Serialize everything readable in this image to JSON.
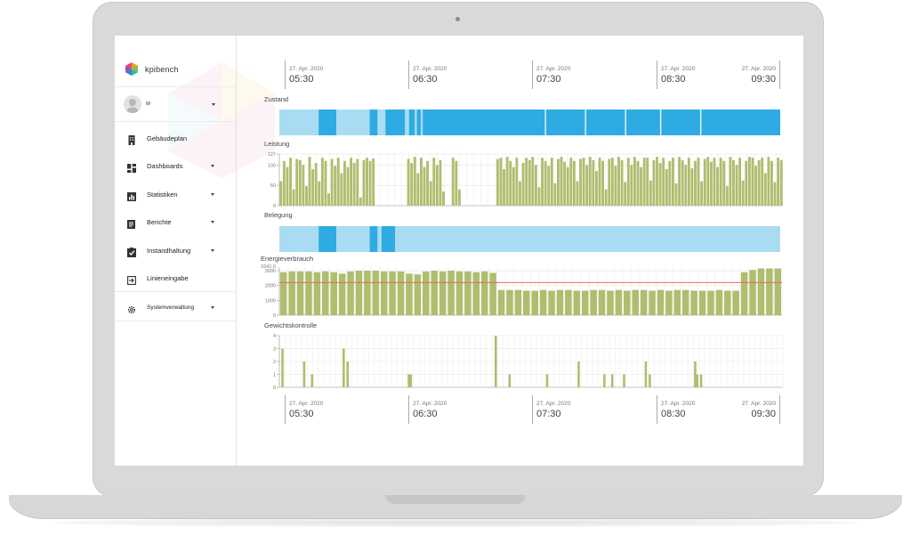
{
  "brand": {
    "name": "kpibench"
  },
  "user": {
    "name": "w"
  },
  "nav": [
    {
      "label": "Gebäudeplan",
      "icon": "building-icon",
      "caret": false
    },
    {
      "label": "Dashboards",
      "icon": "dashboard-icon",
      "caret": true
    },
    {
      "label": "Statistiken",
      "icon": "bar-chart-icon",
      "caret": true
    },
    {
      "label": "Berichte",
      "icon": "document-icon",
      "caret": true
    },
    {
      "label": "Instandhaltung",
      "icon": "clipboard-check-icon",
      "caret": true
    },
    {
      "label": "Linieneingabe",
      "icon": "input-arrow-icon",
      "caret": false
    },
    {
      "label": "Systemverwaltung",
      "icon": "gear-icon",
      "caret": true
    }
  ],
  "time_axis": {
    "ticks": [
      {
        "date": "27. Apr. 2020",
        "time": "05:30"
      },
      {
        "date": "27. Apr. 2020",
        "time": "06:30"
      },
      {
        "date": "27. Apr. 2020",
        "time": "07:30"
      },
      {
        "date": "27. Apr. 2020",
        "time": "08:30"
      },
      {
        "date": "27. Apr. 2020",
        "time": "09:30"
      }
    ]
  },
  "colors": {
    "light_blue": "#a9dcf3",
    "blue": "#2eabe2",
    "green": "#afbd6f",
    "red": "#e86a5e"
  },
  "chart_data": [
    {
      "type": "timeline",
      "title": "Zustand",
      "segments": [
        {
          "start": "05:20",
          "end": "05:40",
          "state": "light"
        },
        {
          "start": "05:40",
          "end": "05:49",
          "state": "dark"
        },
        {
          "start": "05:49",
          "end": "06:06",
          "state": "light"
        },
        {
          "start": "06:06",
          "end": "06:10",
          "state": "dark"
        },
        {
          "start": "06:10",
          "end": "06:14",
          "state": "light"
        },
        {
          "start": "06:14",
          "end": "06:24",
          "state": "dark"
        },
        {
          "start": "06:24",
          "end": "06:26",
          "state": "light"
        },
        {
          "start": "06:26",
          "end": "06:29",
          "state": "dark"
        },
        {
          "start": "06:29",
          "end": "06:30",
          "state": "light"
        },
        {
          "start": "06:30",
          "end": "06:32",
          "state": "dark"
        },
        {
          "start": "06:32",
          "end": "06:33",
          "state": "light"
        },
        {
          "start": "06:33",
          "end": "09:35",
          "state": "dark"
        }
      ]
    },
    {
      "type": "bar",
      "title": "Leistung",
      "yticks": [
        0,
        50,
        100,
        127
      ],
      "ylim": [
        0,
        127
      ],
      "values": [
        60,
        110,
        95,
        118,
        40,
        115,
        112,
        100,
        48,
        120,
        90,
        105,
        60,
        118,
        110,
        30,
        115,
        98,
        118,
        80,
        110,
        95,
        118,
        105,
        115,
        20,
        112,
        118,
        110,
        116,
        0,
        0,
        0,
        0,
        0,
        0,
        0,
        0,
        0,
        0,
        115,
        105,
        120,
        80,
        118,
        95,
        110,
        60,
        118,
        100,
        112,
        35,
        0,
        0,
        118,
        110,
        40,
        0,
        0,
        0,
        0,
        0,
        0,
        0,
        0,
        0,
        0,
        0,
        115,
        118,
        90,
        120,
        110,
        95,
        118,
        60,
        105,
        118,
        112,
        120,
        100,
        45,
        118,
        110,
        98,
        118,
        55,
        115,
        120,
        108,
        95,
        118,
        110,
        60,
        115,
        118,
        100,
        120,
        112,
        85,
        118,
        110,
        40,
        115,
        118,
        98,
        120,
        112,
        58,
        118,
        100,
        120,
        110,
        95,
        118,
        118,
        62,
        112,
        120,
        105,
        118,
        90,
        110,
        118,
        55,
        120,
        112,
        100,
        118,
        92,
        110,
        118,
        60,
        115,
        120,
        108,
        118,
        95,
        118,
        110,
        48,
        120,
        112,
        100,
        118,
        62,
        110,
        120,
        118,
        98,
        112,
        118,
        80,
        120,
        110,
        58,
        118,
        112
      ],
      "start": "05:20",
      "end": "09:35"
    },
    {
      "type": "timeline",
      "title": "Belegung",
      "segments": [
        {
          "start": "05:20",
          "end": "05:40",
          "state": "light"
        },
        {
          "start": "05:40",
          "end": "05:49",
          "state": "dark"
        },
        {
          "start": "05:49",
          "end": "06:06",
          "state": "light"
        },
        {
          "start": "06:06",
          "end": "06:10",
          "state": "dark"
        },
        {
          "start": "06:10",
          "end": "06:12",
          "state": "light"
        },
        {
          "start": "06:12",
          "end": "06:19",
          "state": "dark"
        },
        {
          "start": "06:19",
          "end": "09:35",
          "state": "light"
        }
      ]
    },
    {
      "type": "bar",
      "title": "Energieverbrauch",
      "yticks": [
        0,
        1000,
        2000,
        3000
      ],
      "top_label": "3241.0",
      "ylim": [
        0,
        3241
      ],
      "reference_line": 2200,
      "values": [
        2900,
        2950,
        2950,
        2950,
        2900,
        2950,
        2900,
        2800,
        2950,
        3000,
        3000,
        3000,
        2950,
        2950,
        2950,
        2800,
        2750,
        2950,
        3000,
        2950,
        3000,
        2950,
        2950,
        2900,
        2950,
        2850,
        1700,
        1700,
        1700,
        1650,
        1650,
        1700,
        1650,
        1700,
        1700,
        1650,
        1650,
        1700,
        1700,
        1650,
        1700,
        1650,
        1700,
        1700,
        1650,
        1700,
        1650,
        1700,
        1700,
        1650,
        1650,
        1650,
        1700,
        1650,
        1650,
        2900,
        3050,
        3150,
        3150,
        3150
      ],
      "start": "05:20",
      "end": "09:35"
    },
    {
      "type": "bar",
      "title": "Gewichtskontrolle",
      "yticks": [
        0,
        1,
        2,
        3,
        4
      ],
      "ylim": [
        0,
        4
      ],
      "bars": [
        {
          "t": "05:21",
          "v": 3
        },
        {
          "t": "05:32",
          "v": 2
        },
        {
          "t": "05:36",
          "v": 1
        },
        {
          "t": "05:52",
          "v": 3
        },
        {
          "t": "05:54",
          "v": 2
        },
        {
          "t": "06:25",
          "v": 1
        },
        {
          "t": "06:26",
          "v": 1
        },
        {
          "t": "07:09",
          "v": 4
        },
        {
          "t": "07:16",
          "v": 1
        },
        {
          "t": "07:35",
          "v": 1
        },
        {
          "t": "07:51",
          "v": 2
        },
        {
          "t": "08:04",
          "v": 1
        },
        {
          "t": "08:08",
          "v": 1
        },
        {
          "t": "08:14",
          "v": 1
        },
        {
          "t": "08:25",
          "v": 2
        },
        {
          "t": "08:27",
          "v": 1
        },
        {
          "t": "08:50",
          "v": 2
        },
        {
          "t": "08:51",
          "v": 1
        },
        {
          "t": "08:53",
          "v": 1
        }
      ],
      "start": "05:20",
      "end": "09:35"
    }
  ]
}
